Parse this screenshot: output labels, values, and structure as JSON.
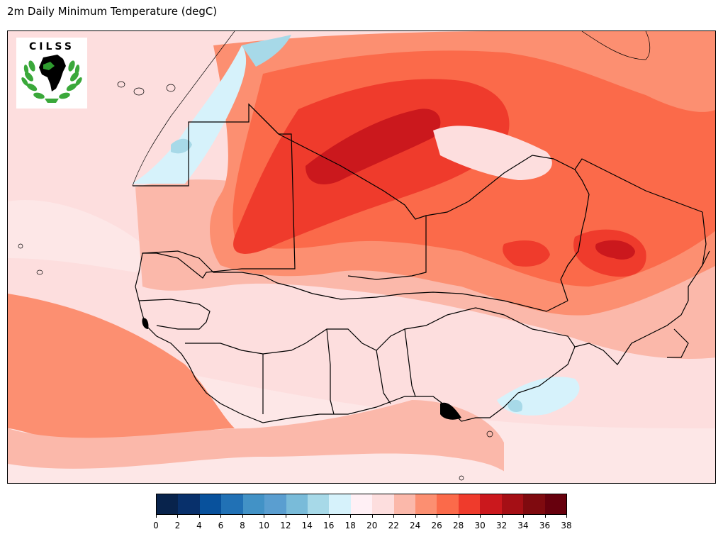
{
  "title": "2m Daily Minimum Temperature (degC)",
  "logo": {
    "text": "CILSS",
    "colors": {
      "leaves": "#3aa83a",
      "africa": "#000000",
      "accent": "#2f9b2f"
    }
  },
  "colorbar": {
    "unit": "degC",
    "levels": [
      0,
      2,
      4,
      6,
      8,
      10,
      12,
      14,
      16,
      18,
      20,
      22,
      24,
      26,
      28,
      30,
      32,
      34,
      36,
      38
    ],
    "tick_labels": [
      "0",
      "2",
      "4",
      "6",
      "8",
      "10",
      "12",
      "14",
      "16",
      "18",
      "20",
      "22",
      "24",
      "26",
      "28",
      "30",
      "32",
      "34",
      "36",
      "38"
    ],
    "colors": [
      "#08234c",
      "#08306b",
      "#08519c",
      "#2171b5",
      "#4292c6",
      "#5a9ed0",
      "#79bbd9",
      "#a7d9e8",
      "#d6f2fb",
      "#fff0f5",
      "#fddede",
      "#fbb8aa",
      "#fc8f71",
      "#fb6a4a",
      "#ef3b2c",
      "#cb181d",
      "#a50f15",
      "#7f0a0f",
      "#67000d"
    ]
  },
  "map": {
    "region": "West Africa",
    "ocean_base": "#fddede",
    "colors": {
      "warm_band": "#fc8f71",
      "mid": "#fbb8aa",
      "hot": "#fb6a4a",
      "hotter": "#ef3b2c",
      "hottest": "#cb181d",
      "cool": "#d6f2fb",
      "cooler": "#a7d9e8",
      "border": "#000000"
    }
  }
}
